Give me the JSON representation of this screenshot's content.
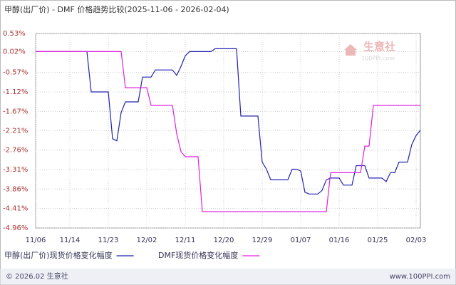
{
  "chart_data": {
    "type": "line",
    "title": "甲醇(出厂价) - DMF 价格趋势比较(2025-11-06 - 2026-02-04)",
    "watermark": [
      "生意社",
      "100PPI.com"
    ],
    "footer_left": "© 2026.02 生意社",
    "footer_right": "www.100PPI.com",
    "x": [
      "11/06",
      "11/07",
      "11/08",
      "11/09",
      "11/10",
      "11/11",
      "11/12",
      "11/13",
      "11/14",
      "11/15",
      "11/16",
      "11/17",
      "11/18",
      "11/19",
      "11/20",
      "11/21",
      "11/22",
      "11/23",
      "11/24",
      "11/25",
      "11/26",
      "11/27",
      "11/28",
      "11/29",
      "11/30",
      "12/01",
      "12/02",
      "12/03",
      "12/04",
      "12/05",
      "12/06",
      "12/07",
      "12/08",
      "12/09",
      "12/10",
      "12/11",
      "12/12",
      "12/13",
      "12/14",
      "12/15",
      "12/16",
      "12/17",
      "12/18",
      "12/19",
      "12/20",
      "12/21",
      "12/22",
      "12/23",
      "12/24",
      "12/25",
      "12/26",
      "12/27",
      "12/28",
      "12/29",
      "12/30",
      "12/31",
      "01/01",
      "01/02",
      "01/03",
      "01/04",
      "01/05",
      "01/06",
      "01/07",
      "01/08",
      "01/09",
      "01/10",
      "01/11",
      "01/12",
      "01/13",
      "01/14",
      "01/15",
      "01/16",
      "01/17",
      "01/18",
      "01/19",
      "01/20",
      "01/21",
      "01/22",
      "01/23",
      "01/24",
      "01/25",
      "01/26",
      "01/27",
      "01/28",
      "01/29",
      "01/30",
      "01/31",
      "02/01",
      "02/02",
      "02/03",
      "02/04"
    ],
    "series": [
      {
        "name": "甲醇(出厂价)现货价格变化幅度",
        "color": "#2222b0",
        "values": [
          0.02,
          0.02,
          0.02,
          0.02,
          0.02,
          0.02,
          0.02,
          0.02,
          0.02,
          0.02,
          0.02,
          0.02,
          0.02,
          -1.12,
          -1.12,
          -1.12,
          -1.12,
          -1.12,
          -2.44,
          -2.5,
          -1.7,
          -1.4,
          -1.4,
          -1.4,
          -1.4,
          -0.7,
          -0.7,
          -0.7,
          -0.5,
          -0.5,
          -0.5,
          -0.5,
          -0.5,
          -0.65,
          -0.4,
          -0.1,
          0.02,
          0.02,
          0.02,
          0.02,
          0.02,
          0.02,
          0.1,
          0.1,
          0.1,
          0.1,
          0.1,
          0.1,
          -1.8,
          -1.8,
          -1.8,
          -1.8,
          -1.8,
          -3.1,
          -3.3,
          -3.6,
          -3.6,
          -3.6,
          -3.6,
          -3.6,
          -3.3,
          -3.3,
          -3.35,
          -3.95,
          -4.0,
          -4.0,
          -4.0,
          -3.9,
          -3.6,
          -3.55,
          -3.55,
          -3.55,
          -3.75,
          -3.75,
          -3.75,
          -3.2,
          -3.2,
          -3.2,
          -3.55,
          -3.55,
          -3.55,
          -3.55,
          -3.65,
          -3.4,
          -3.4,
          -3.1,
          -3.1,
          -3.1,
          -2.6,
          -2.35,
          -2.2
        ]
      },
      {
        "name": "DMF现货价格变化幅度",
        "color": "#e020e0",
        "values": [
          0.02,
          0.02,
          0.02,
          0.02,
          0.02,
          0.02,
          0.02,
          0.02,
          0.02,
          0.02,
          0.02,
          0.02,
          0.02,
          0.02,
          0.02,
          0.02,
          0.02,
          0.02,
          0.02,
          0.02,
          0.02,
          -1.0,
          -1.0,
          -1.0,
          -1.0,
          -1.0,
          -1.0,
          -1.5,
          -1.5,
          -1.5,
          -1.5,
          -1.5,
          -1.5,
          -2.3,
          -2.8,
          -2.95,
          -2.95,
          -2.95,
          -2.95,
          -4.5,
          -4.5,
          -4.5,
          -4.5,
          -4.5,
          -4.5,
          -4.5,
          -4.5,
          -4.5,
          -4.5,
          -4.5,
          -4.5,
          -4.5,
          -4.5,
          -4.5,
          -4.5,
          -4.5,
          -4.5,
          -4.5,
          -4.5,
          -4.5,
          -4.5,
          -4.5,
          -4.5,
          -4.5,
          -4.5,
          -4.5,
          -4.5,
          -4.5,
          -4.5,
          -3.4,
          -3.4,
          -3.4,
          -3.4,
          -3.4,
          -3.4,
          -3.4,
          -3.4,
          -2.65,
          -2.65,
          -1.5,
          -1.5,
          -1.5,
          -1.5,
          -1.5,
          -1.5,
          -1.5,
          -1.5,
          -1.5,
          -1.5,
          -1.5,
          -1.5
        ]
      }
    ],
    "ylim": [
      -4.96,
      0.53
    ],
    "yticks": [
      {
        "value": 0.53,
        "label": "0.53%"
      },
      {
        "value": 0.02,
        "label": "0.02%"
      },
      {
        "value": -0.57,
        "label": "-0.57%"
      },
      {
        "value": -1.12,
        "label": "-1.12%"
      },
      {
        "value": -1.67,
        "label": "-1.67%"
      },
      {
        "value": -2.21,
        "label": "-2.21%"
      },
      {
        "value": -2.76,
        "label": "-2.76%"
      },
      {
        "value": -3.31,
        "label": "-3.31%"
      },
      {
        "value": -3.86,
        "label": "-3.86%"
      },
      {
        "value": -4.41,
        "label": "-4.41%"
      },
      {
        "value": -4.96,
        "label": "-4.96%"
      }
    ],
    "xticks": [
      "11/06",
      "11/14",
      "11/23",
      "12/02",
      "12/11",
      "12/20",
      "12/29",
      "01/07",
      "01/16",
      "01/25",
      "02/03"
    ],
    "grid": true
  }
}
